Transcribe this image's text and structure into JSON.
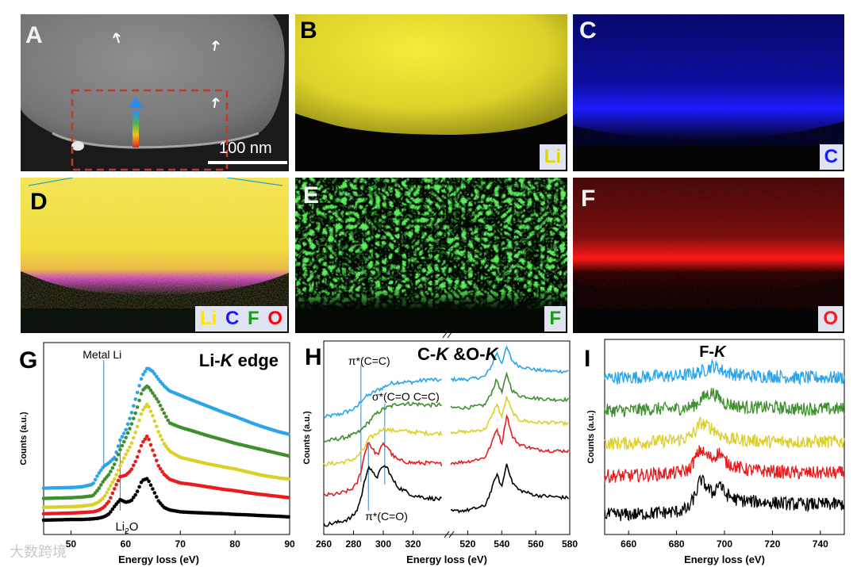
{
  "panels": {
    "A": {
      "label": "A",
      "scale_bar": "100 nm"
    },
    "B": {
      "label": "B",
      "element": "Li",
      "color": "#dfd600"
    },
    "C": {
      "label": "C",
      "element": "C",
      "color": "#1a1aff"
    },
    "D": {
      "label": "D",
      "legend": [
        {
          "text": "Li",
          "color": "#ffe600"
        },
        {
          "text": "C",
          "color": "#1a1aff"
        },
        {
          "text": "F",
          "color": "#1c9a1c"
        },
        {
          "text": "O",
          "color": "#ff0000"
        }
      ]
    },
    "E": {
      "label": "E",
      "element": "F",
      "color": "#1c9a1c"
    },
    "F": {
      "label": "F",
      "element": "O",
      "color": "#ff1a1a"
    }
  },
  "series_colors": {
    "top": "#2aa5ec",
    "second": "#3f8f2e",
    "third": "#dccf2a",
    "fourth": "#e81c1c",
    "bottom": "#000000"
  },
  "chart_data": [
    {
      "id": "G",
      "label": "G",
      "type": "scatter",
      "title": "Li-K edge",
      "xlabel": "Energy loss (eV)",
      "ylabel": "Counts (a.u.)",
      "xlim": [
        45,
        90
      ],
      "xticks": [
        50,
        60,
        70,
        80,
        90
      ],
      "annotations": [
        {
          "text": "Metal Li",
          "x": 56
        },
        {
          "text": "Li2O",
          "x": 59
        }
      ],
      "series": [
        {
          "values_x": [
            45,
            50,
            52,
            54,
            55,
            56,
            57,
            58,
            59,
            60,
            61,
            62,
            63,
            64,
            65,
            66,
            67,
            68,
            70,
            72,
            75,
            78,
            80,
            83,
            85,
            88,
            90
          ],
          "values_y": [
            0.6,
            0.61,
            0.62,
            0.66,
            0.82,
            0.94,
            1.0,
            1.08,
            1.35,
            1.5,
            1.75,
            2.05,
            2.35,
            2.48,
            2.42,
            2.3,
            2.2,
            2.12,
            2.05,
            1.98,
            1.88,
            1.78,
            1.72,
            1.62,
            1.56,
            1.48,
            1.44
          ]
        },
        {
          "values_x": [
            45,
            50,
            52,
            54,
            55,
            56,
            57,
            58,
            59,
            60,
            61,
            62,
            63,
            64,
            65,
            66,
            67,
            68,
            70,
            72,
            75,
            78,
            80,
            83,
            85,
            88,
            90
          ],
          "values_y": [
            0.44,
            0.45,
            0.46,
            0.48,
            0.58,
            0.72,
            0.82,
            0.98,
            1.2,
            1.38,
            1.58,
            1.82,
            2.12,
            2.2,
            2.08,
            1.95,
            1.78,
            1.62,
            1.55,
            1.5,
            1.42,
            1.35,
            1.3,
            1.24,
            1.2,
            1.14,
            1.1
          ]
        },
        {
          "values_x": [
            45,
            50,
            52,
            54,
            55,
            56,
            57,
            58,
            59,
            60,
            61,
            62,
            63,
            64,
            65,
            66,
            67,
            68,
            70,
            72,
            75,
            78,
            80,
            83,
            85,
            88,
            90
          ],
          "values_y": [
            0.3,
            0.31,
            0.32,
            0.34,
            0.38,
            0.45,
            0.6,
            0.75,
            0.95,
            1.12,
            1.28,
            1.52,
            1.8,
            1.92,
            1.72,
            1.48,
            1.3,
            1.18,
            1.08,
            1.04,
            0.98,
            0.93,
            0.9,
            0.84,
            0.8,
            0.76,
            0.74
          ]
        },
        {
          "values_x": [
            45,
            50,
            52,
            54,
            55,
            56,
            57,
            58,
            59,
            60,
            61,
            62,
            63,
            64,
            65,
            66,
            67,
            68,
            70,
            72,
            75,
            78,
            80,
            83,
            85,
            88,
            90
          ],
          "values_y": [
            0.2,
            0.21,
            0.22,
            0.23,
            0.25,
            0.3,
            0.4,
            0.6,
            0.78,
            0.8,
            0.88,
            1.05,
            1.3,
            1.42,
            1.18,
            0.95,
            0.82,
            0.74,
            0.68,
            0.66,
            0.62,
            0.58,
            0.56,
            0.52,
            0.5,
            0.47,
            0.45
          ]
        },
        {
          "values_x": [
            45,
            50,
            52,
            54,
            55,
            56,
            57,
            58,
            59,
            60,
            61,
            62,
            63,
            64,
            65,
            66,
            67,
            68,
            70,
            72,
            75,
            78,
            80,
            83,
            85,
            88,
            90
          ],
          "values_y": [
            0.1,
            0.11,
            0.11,
            0.12,
            0.13,
            0.15,
            0.2,
            0.32,
            0.42,
            0.38,
            0.4,
            0.52,
            0.72,
            0.75,
            0.58,
            0.4,
            0.3,
            0.26,
            0.23,
            0.22,
            0.21,
            0.2,
            0.19,
            0.18,
            0.17,
            0.16,
            0.15
          ]
        }
      ]
    },
    {
      "id": "H",
      "label": "H",
      "type": "line",
      "title_parts": [
        "C-",
        "K",
        " &O-",
        "K"
      ],
      "xlabel": "Energy loss (eV)",
      "ylabel": "Counts (a.u.)",
      "xlim_left": [
        260,
        340
      ],
      "xticks_left": [
        260,
        280,
        300,
        320
      ],
      "xlim_right": [
        510,
        580
      ],
      "xticks_right": [
        520,
        540,
        560,
        580
      ],
      "annotations": [
        {
          "text": "π*(C=C)",
          "x": 285
        },
        {
          "text": "σ*(C=O C=C)",
          "x": 301
        },
        {
          "text": "π*(C=O)",
          "x": 290
        }
      ],
      "series": [
        {
          "left_x": [
            260,
            270,
            278,
            282,
            285,
            288,
            290,
            293,
            296,
            300,
            305,
            310,
            320,
            330,
            340
          ],
          "left_y": [
            0.8,
            0.82,
            0.85,
            0.87,
            0.92,
            0.95,
            0.96,
            0.98,
            1.0,
            1.02,
            1.05,
            1.06,
            1.06,
            1.08,
            1.07
          ],
          "right_x": [
            510,
            520,
            530,
            534,
            537,
            540,
            543,
            546,
            550,
            560,
            570,
            580
          ],
          "right_y": [
            1.08,
            1.08,
            1.1,
            1.18,
            1.28,
            1.2,
            1.32,
            1.22,
            1.18,
            1.15,
            1.14,
            1.14
          ]
        },
        {
          "left_x": [
            260,
            270,
            278,
            282,
            285,
            288,
            290,
            293,
            296,
            300,
            305,
            310,
            320,
            330,
            340
          ],
          "left_y": [
            0.62,
            0.64,
            0.66,
            0.68,
            0.7,
            0.74,
            0.76,
            0.8,
            0.83,
            0.86,
            0.88,
            0.9,
            0.9,
            0.89,
            0.89
          ],
          "right_x": [
            510,
            520,
            530,
            534,
            537,
            540,
            543,
            546,
            550,
            560,
            570,
            580
          ],
          "right_y": [
            0.87,
            0.87,
            0.89,
            0.98,
            1.08,
            0.98,
            1.12,
            1.0,
            0.96,
            0.94,
            0.93,
            0.93
          ]
        },
        {
          "left_x": [
            260,
            270,
            278,
            282,
            285,
            288,
            290,
            293,
            296,
            300,
            305,
            310,
            320,
            330,
            340
          ],
          "left_y": [
            0.45,
            0.46,
            0.48,
            0.5,
            0.54,
            0.58,
            0.64,
            0.66,
            0.68,
            0.72,
            0.7,
            0.7,
            0.69,
            0.68,
            0.68
          ],
          "right_x": [
            510,
            520,
            530,
            534,
            537,
            540,
            543,
            546,
            550,
            560,
            570,
            580
          ],
          "right_y": [
            0.69,
            0.69,
            0.71,
            0.8,
            0.9,
            0.8,
            0.95,
            0.84,
            0.78,
            0.76,
            0.76,
            0.75
          ]
        },
        {
          "left_x": [
            260,
            270,
            278,
            282,
            285,
            288,
            290,
            293,
            296,
            300,
            303,
            306,
            310,
            320,
            330,
            340
          ],
          "left_y": [
            0.22,
            0.23,
            0.26,
            0.3,
            0.4,
            0.55,
            0.62,
            0.56,
            0.52,
            0.6,
            0.58,
            0.52,
            0.48,
            0.46,
            0.46,
            0.45
          ],
          "right_x": [
            510,
            520,
            530,
            534,
            537,
            540,
            543,
            546,
            550,
            560,
            570,
            580
          ],
          "right_y": [
            0.46,
            0.47,
            0.5,
            0.6,
            0.72,
            0.6,
            0.82,
            0.66,
            0.6,
            0.56,
            0.55,
            0.55
          ]
        },
        {
          "left_x": [
            260,
            270,
            278,
            282,
            285,
            288,
            290,
            293,
            296,
            300,
            303,
            306,
            310,
            320,
            330,
            340
          ],
          "left_y": [
            0.0,
            0.02,
            0.05,
            0.1,
            0.2,
            0.35,
            0.44,
            0.38,
            0.36,
            0.44,
            0.42,
            0.34,
            0.28,
            0.22,
            0.2,
            0.19
          ],
          "right_x": [
            510,
            520,
            530,
            534,
            537,
            540,
            543,
            546,
            550,
            560,
            570,
            580
          ],
          "right_y": [
            0.1,
            0.11,
            0.14,
            0.26,
            0.38,
            0.28,
            0.46,
            0.32,
            0.26,
            0.22,
            0.21,
            0.2
          ]
        }
      ]
    },
    {
      "id": "I",
      "label": "I",
      "type": "line",
      "title_parts": [
        "F-",
        "K"
      ],
      "xlabel": "Energy loss (eV)",
      "ylabel": "Counts (a.u.)",
      "xlim": [
        650,
        750
      ],
      "xticks": [
        660,
        680,
        700,
        720,
        740
      ],
      "series": [
        {
          "x": [
            650,
            660,
            670,
            680,
            685,
            688,
            690,
            692,
            695,
            698,
            700,
            705,
            710,
            720,
            730,
            740,
            750
          ],
          "y": [
            1.0,
            1.0,
            1.01,
            1.01,
            1.02,
            1.03,
            1.04,
            1.05,
            1.08,
            1.06,
            1.04,
            1.02,
            1.01,
            1.01,
            1.0,
            1.0,
            1.0
          ]
        },
        {
          "x": [
            650,
            660,
            670,
            680,
            685,
            688,
            690,
            692,
            695,
            698,
            700,
            705,
            710,
            720,
            730,
            740,
            750
          ],
          "y": [
            0.78,
            0.78,
            0.79,
            0.79,
            0.8,
            0.82,
            0.85,
            0.88,
            0.9,
            0.86,
            0.83,
            0.81,
            0.8,
            0.8,
            0.79,
            0.79,
            0.79
          ]
        },
        {
          "x": [
            650,
            660,
            670,
            680,
            685,
            688,
            690,
            692,
            695,
            698,
            700,
            705,
            710,
            720,
            730,
            740,
            750
          ],
          "y": [
            0.56,
            0.56,
            0.57,
            0.58,
            0.6,
            0.64,
            0.7,
            0.68,
            0.66,
            0.62,
            0.6,
            0.58,
            0.58,
            0.57,
            0.57,
            0.57,
            0.57
          ]
        },
        {
          "x": [
            650,
            660,
            670,
            680,
            685,
            688,
            690,
            692,
            695,
            698,
            700,
            705,
            710,
            720,
            730,
            740,
            750
          ],
          "y": [
            0.34,
            0.34,
            0.35,
            0.36,
            0.38,
            0.46,
            0.52,
            0.48,
            0.46,
            0.5,
            0.44,
            0.4,
            0.38,
            0.37,
            0.36,
            0.36,
            0.36
          ]
        },
        {
          "x": [
            650,
            660,
            670,
            680,
            685,
            688,
            690,
            692,
            695,
            698,
            700,
            705,
            710,
            720,
            730,
            740,
            750
          ],
          "y": [
            0.08,
            0.08,
            0.09,
            0.1,
            0.12,
            0.22,
            0.32,
            0.28,
            0.22,
            0.3,
            0.22,
            0.18,
            0.17,
            0.16,
            0.15,
            0.15,
            0.15
          ]
        }
      ]
    }
  ],
  "watermark": "大数跨境"
}
